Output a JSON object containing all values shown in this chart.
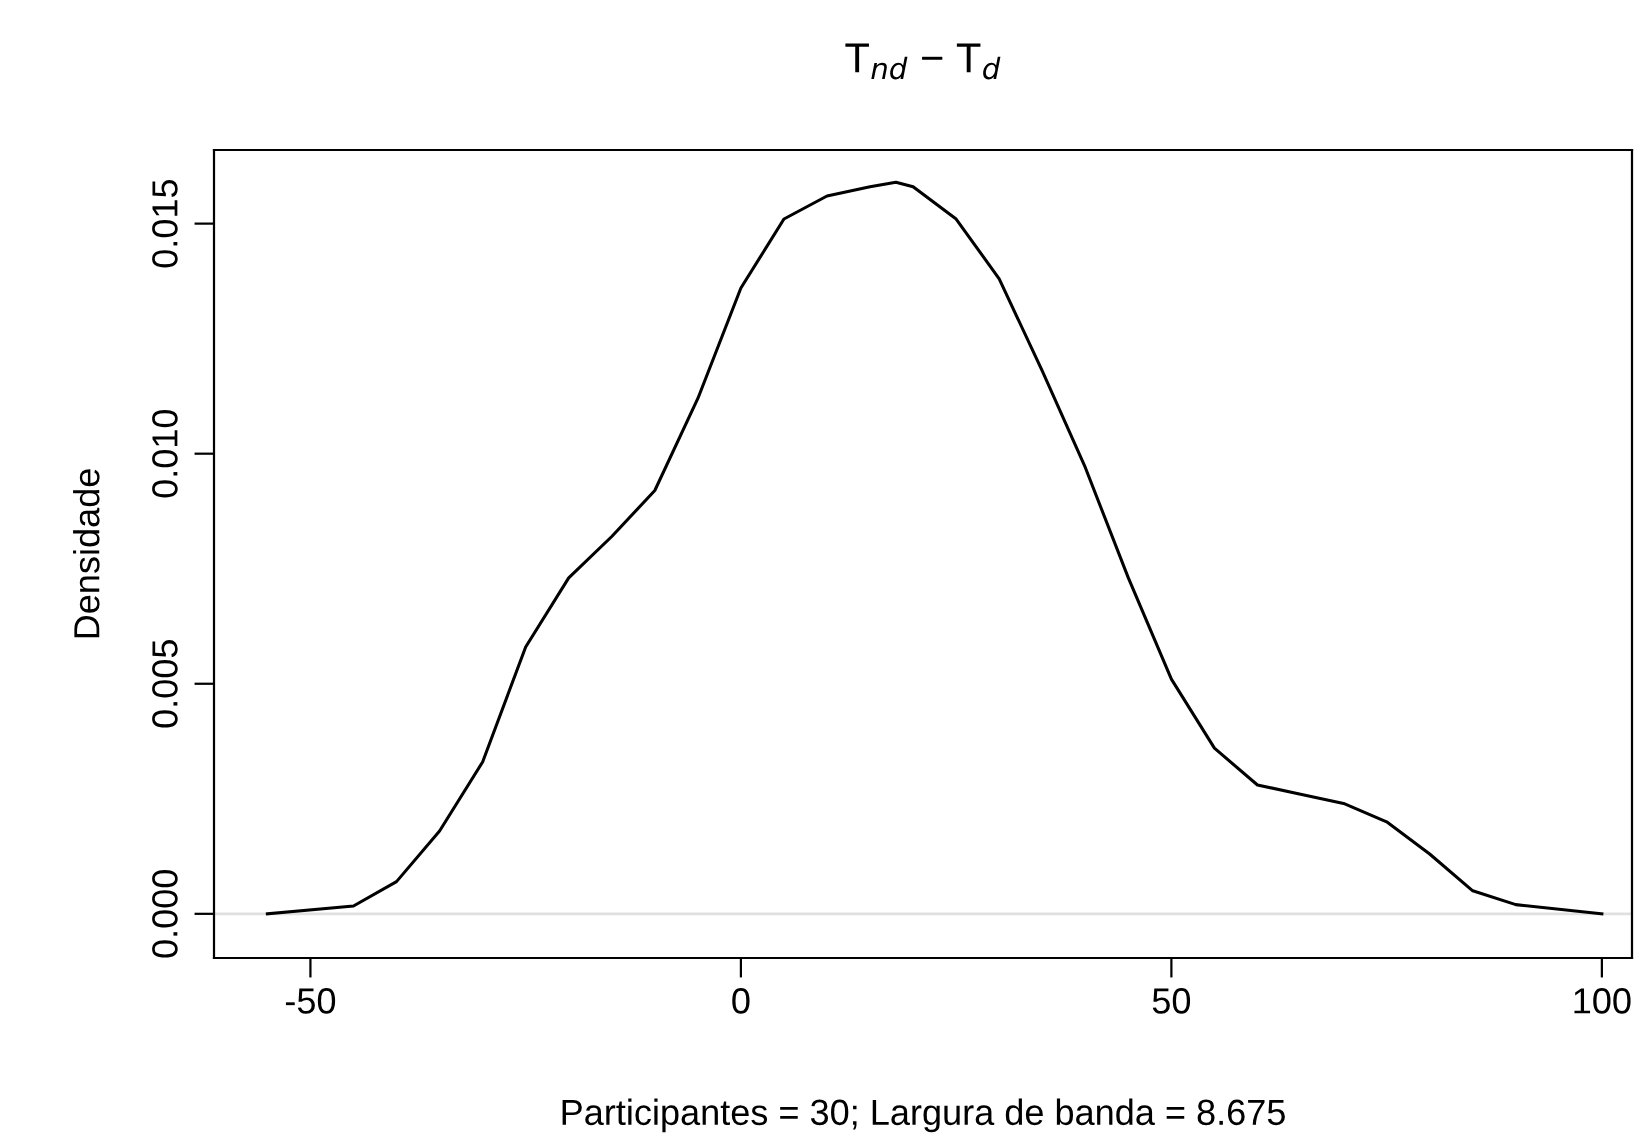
{
  "chart_data": {
    "type": "line",
    "title": "T$_{nd}$ − T$_{d}$",
    "xlabel": "Participantes = 30; Largura de banda = 8.675",
    "ylabel": "Densidade",
    "x": [
      -55,
      -45,
      -40,
      -35,
      -30,
      -25,
      -20,
      -15,
      -10,
      -5,
      0,
      5,
      10,
      15,
      18,
      20,
      25,
      30,
      35,
      40,
      45,
      50,
      55,
      60,
      65,
      70,
      75,
      80,
      85,
      90,
      100
    ],
    "series": [
      {
        "color": "#000000",
        "values": [
          0.0,
          0.00017,
          0.0007,
          0.0018,
          0.0033,
          0.0058,
          0.0073,
          0.0082,
          0.0092,
          0.0112,
          0.0136,
          0.0151,
          0.0156,
          0.0158,
          0.0159,
          0.0158,
          0.0151,
          0.0138,
          0.0118,
          0.0097,
          0.0073,
          0.0051,
          0.0036,
          0.0028,
          0.0026,
          0.0024,
          0.002,
          0.0013,
          0.0005,
          0.0002,
          0.0
        ]
      }
    ],
    "xlim": [
      -61.2,
      103.5
    ],
    "ylim": [
      -0.00096,
      0.0166
    ],
    "xticks": [
      -50,
      0,
      50,
      100
    ],
    "yticks": [
      {
        "value": 0,
        "label": "0.000"
      },
      {
        "value": 0.005,
        "label": "0.005"
      },
      {
        "value": 0.01,
        "label": "0.010"
      },
      {
        "value": 0.015,
        "label": "0.015"
      }
    ],
    "ref_lines": [
      {
        "axis": "y",
        "value": 0,
        "label": null,
        "color": "#e0e0e0"
      }
    ],
    "grid": false,
    "legend": false,
    "marker": "none",
    "line_style": "solid"
  }
}
